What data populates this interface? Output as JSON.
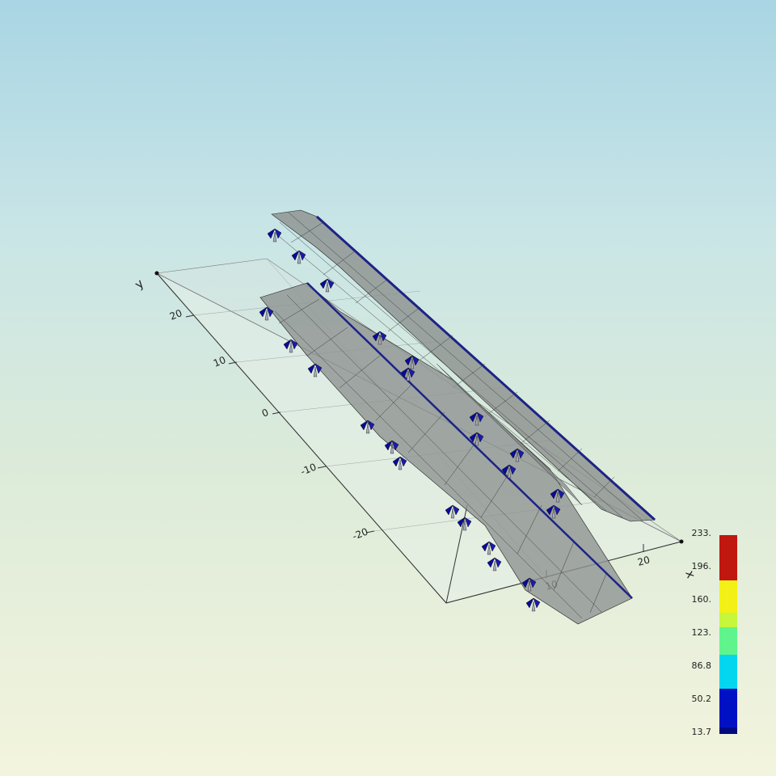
{
  "axes": {
    "x": {
      "title": "x",
      "ticks": [
        "10",
        "20"
      ]
    },
    "y": {
      "title": "y",
      "ticks": [
        "20",
        "10",
        "0",
        "-10",
        "-20"
      ]
    }
  },
  "legend": {
    "labels": [
      "233.",
      "196.",
      "160.",
      "123.",
      "86.8",
      "50.2",
      "13.7"
    ],
    "colors": [
      "#c0170f",
      "#c0170f",
      "#f2f016",
      "#c6f73a",
      "#5ff58c",
      "#05d6f0",
      "#0010c4",
      "#000a80"
    ]
  },
  "colors": {
    "surface": "#8c918f",
    "surface_edge": "#2b2f8a",
    "arrow": "#0a0a9a",
    "plane": "#e2ece6"
  }
}
